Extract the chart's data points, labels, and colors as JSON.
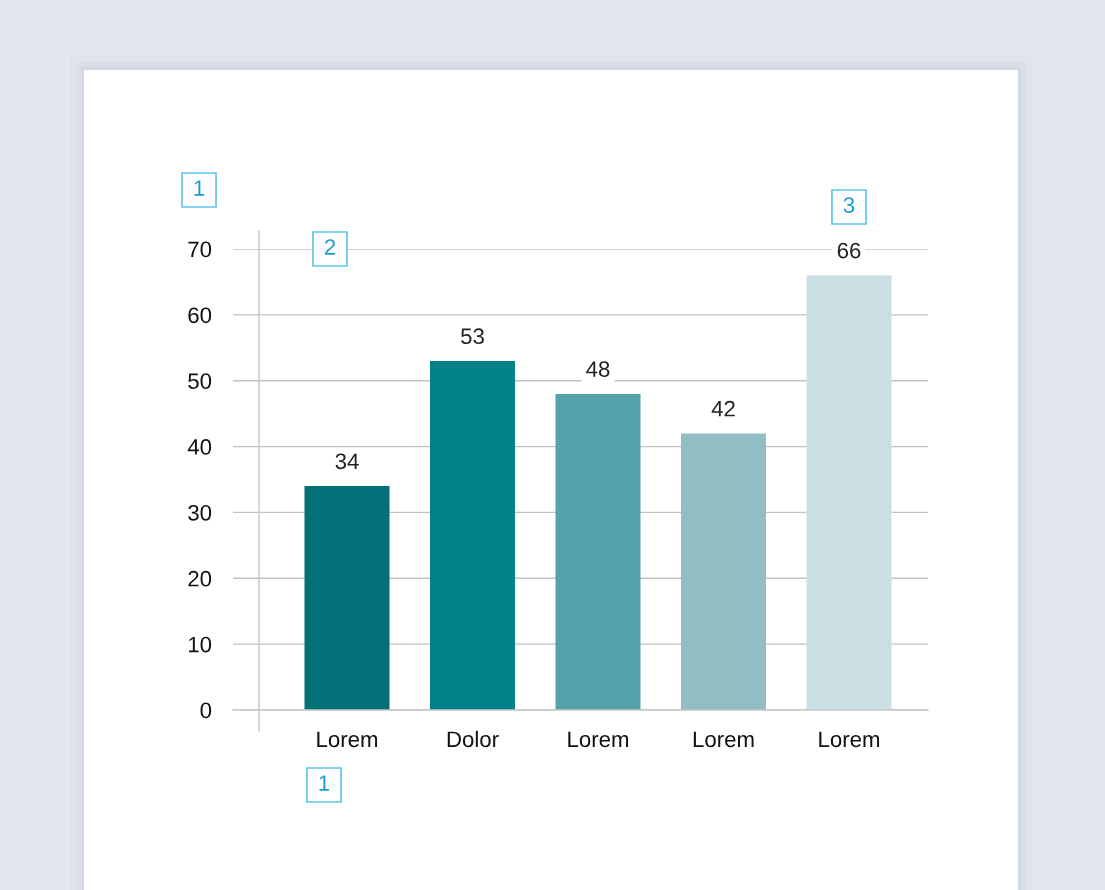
{
  "chart_data": {
    "type": "bar",
    "categories": [
      "Lorem",
      "Dolor",
      "Lorem",
      "Lorem",
      "Lorem"
    ],
    "values": [
      34,
      53,
      48,
      42,
      66
    ],
    "colors": [
      "#036f77",
      "#008289",
      "#55a2aa",
      "#91bec4",
      "#cadfe4"
    ],
    "ylim": [
      0,
      70
    ],
    "yticks": [
      0,
      10,
      20,
      30,
      40,
      50,
      60,
      70
    ],
    "grid": "y",
    "data_labels": true,
    "annotations": [
      "1",
      "2",
      "3",
      "1"
    ]
  }
}
